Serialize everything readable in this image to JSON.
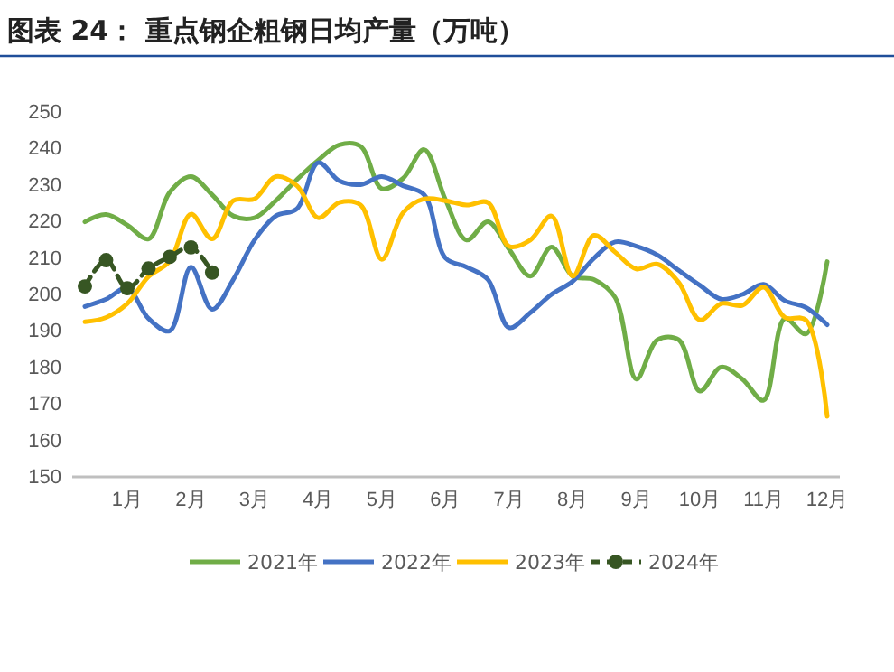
{
  "chart_data": {
    "type": "line",
    "title": "图表 24：  重点钢企粗钢日均产量（万吨）",
    "categories": [
      null,
      null,
      "1月",
      null,
      null,
      "2月",
      null,
      null,
      "3月",
      null,
      null,
      "4月",
      null,
      null,
      "5月",
      null,
      null,
      "6月",
      null,
      null,
      "7月",
      null,
      null,
      "8月",
      null,
      null,
      "9月",
      null,
      null,
      "10月",
      null,
      null,
      "11月",
      null,
      null,
      "12月"
    ],
    "ylim": [
      150,
      250
    ],
    "yticks": [
      150,
      160,
      170,
      180,
      190,
      200,
      210,
      220,
      230,
      240,
      250
    ],
    "grid": false,
    "legend": "bottom",
    "series": [
      {
        "name": "2021年",
        "color": "#70ad47",
        "line_style": "solid",
        "marker": "none",
        "values": [
          219.9,
          221.9,
          219,
          215.2,
          228,
          232.3,
          227.3,
          221.5,
          221,
          225.7,
          231.5,
          236.8,
          241,
          240.6,
          229,
          231.8,
          239.7,
          226,
          214.9,
          219.9,
          212.4,
          205,
          213,
          205,
          204.1,
          199.2,
          176.8,
          187.6,
          187.6,
          173.5,
          180.1,
          176.8,
          171,
          193.4,
          189.2,
          209
        ]
      },
      {
        "name": "2022年",
        "color": "#4472c4",
        "line_style": "solid",
        "marker": "none",
        "values": [
          196.7,
          198.7,
          201.7,
          193.4,
          190,
          207.5,
          195.9,
          204.1,
          214.9,
          221.5,
          223.5,
          236.1,
          231.1,
          230.1,
          232.3,
          229.8,
          227.3,
          210,
          207.5,
          204.1,
          190.9,
          195,
          200,
          203.6,
          209.9,
          214.4,
          213.2,
          210.8,
          206.6,
          202.5,
          198.7,
          200,
          202.8,
          198.3,
          196.4,
          191.7
        ]
      },
      {
        "name": "2023年",
        "color": "#ffc000",
        "line_style": "solid",
        "marker": "none",
        "values": [
          192.5,
          193.7,
          197.5,
          204.9,
          209.1,
          222,
          215.2,
          225.7,
          226.2,
          232.3,
          229.8,
          221,
          225.2,
          224.5,
          209.6,
          222.4,
          226.2,
          225.7,
          224.5,
          225.2,
          213.2,
          214.9,
          221.5,
          205,
          216.2,
          211.6,
          207,
          208.3,
          203.3,
          193,
          197.5,
          197,
          202,
          193.7,
          193,
          166.6
        ]
      },
      {
        "name": "2024年",
        "color": "#375623",
        "line_style": "dashed",
        "marker": "circle",
        "values": [
          202.2,
          209.4,
          201.7,
          207.1,
          210.3,
          212.9,
          206,
          null,
          null,
          null,
          null,
          null,
          null,
          null,
          null,
          null,
          null,
          null,
          null,
          null,
          null,
          null,
          null,
          null,
          null,
          null,
          null,
          null,
          null,
          null,
          null,
          null,
          null,
          null,
          null,
          null
        ]
      }
    ]
  }
}
